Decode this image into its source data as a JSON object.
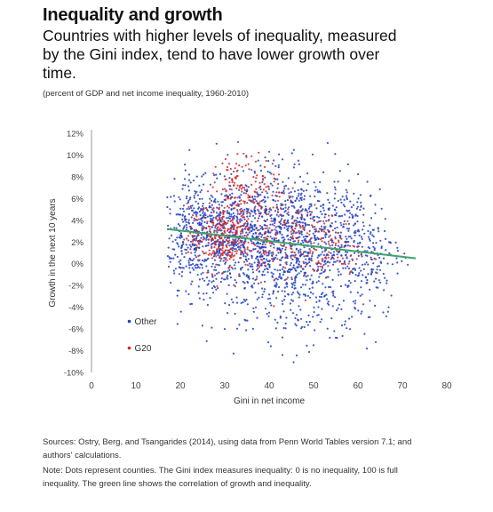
{
  "header": {
    "title": "Inequality and growth",
    "subtitle": "Countries with higher levels of inequality, measured by the Gini index, tend to have lower growth over time.",
    "note": "(percent of GDP and net income inequality, 1960-2010)"
  },
  "footer": {
    "sources": "Sources: Ostry, Berg, and Tsangarides (2014), using data from Penn World Tables version 7.1; and authors' calculations.",
    "note": "Note: Dots represent counties. The Gini index measures inequality: 0 is no inequality, 100 is full inequality. The green line shows the correlation of growth and inequality."
  },
  "colors": {
    "other": "#1f3fbf",
    "g20": "#d62728",
    "trend": "#3aa36b",
    "axis": "#555555"
  },
  "chart_data": {
    "type": "scatter",
    "title": "",
    "xlabel": "Gini in net income",
    "ylabel": "Growth in the next 10 years",
    "xlim": [
      0,
      80
    ],
    "ylim": [
      -10,
      12
    ],
    "x_ticks": [
      "0",
      "10",
      "20",
      "30",
      "40",
      "50",
      "60",
      "70",
      "80"
    ],
    "y_ticks": [
      "-10%",
      "-8%",
      "-6%",
      "-4%",
      "-2%",
      "0%",
      "2%",
      "4%",
      "6%",
      "8%",
      "10%",
      "12%"
    ],
    "legend": {
      "position": "bottom-left",
      "entries": [
        {
          "name": "Other",
          "series": "other"
        },
        {
          "name": "G20",
          "series": "g20"
        }
      ]
    },
    "trend_line": {
      "x": [
        17,
        73
      ],
      "y": [
        3.2,
        0.5
      ]
    },
    "series": [
      {
        "name": "Other",
        "key": "other",
        "clusters": [
          {
            "cx": 24,
            "cy": 2.6,
            "sx": 4.5,
            "sy": 2.4,
            "n": 430
          },
          {
            "cx": 36,
            "cy": 2.2,
            "sx": 7.0,
            "sy": 2.6,
            "n": 620
          },
          {
            "cx": 48,
            "cy": 1.8,
            "sx": 6.0,
            "sy": 3.2,
            "n": 520
          },
          {
            "cx": 60,
            "cy": 1.2,
            "sx": 5.0,
            "sy": 3.0,
            "n": 260
          },
          {
            "cx": 38,
            "cy": 4.5,
            "sx": 7.0,
            "sy": 3.0,
            "n": 180
          },
          {
            "cx": 44,
            "cy": -3.5,
            "sx": 9.0,
            "sy": 2.2,
            "n": 120
          }
        ],
        "outliers": [
          [
            21,
            7.8
          ],
          [
            22,
            8.2
          ],
          [
            40,
            10.3
          ],
          [
            33,
            11.2
          ],
          [
            47,
            8.0
          ],
          [
            43,
            9.6
          ],
          [
            62,
            -7.8
          ],
          [
            64,
            -7.2
          ],
          [
            55,
            -6.8
          ],
          [
            50,
            -7.5
          ],
          [
            30,
            -6.0
          ],
          [
            25,
            -5.7
          ],
          [
            43,
            -8.4
          ],
          [
            67,
            2.0
          ],
          [
            69,
            1.2
          ],
          [
            66,
            3.0
          ],
          [
            18,
            2.6
          ],
          [
            18,
            0.5
          ],
          [
            57,
            -5.6
          ],
          [
            27,
            5.8
          ],
          [
            32,
            7.2
          ],
          [
            51,
            6.6
          ],
          [
            59,
            5.4
          ],
          [
            63,
            4.2
          ]
        ]
      },
      {
        "name": "G20",
        "key": "g20",
        "clusters": [
          {
            "cx": 29,
            "cy": 2.4,
            "sx": 3.6,
            "sy": 1.5,
            "n": 260
          },
          {
            "cx": 35,
            "cy": 7.3,
            "sx": 4.0,
            "sy": 1.3,
            "n": 110
          },
          {
            "cx": 45,
            "cy": 2.1,
            "sx": 5.0,
            "sy": 1.8,
            "n": 110
          },
          {
            "cx": 55,
            "cy": 1.3,
            "sx": 3.5,
            "sy": 1.5,
            "n": 60
          },
          {
            "cx": 38,
            "cy": 3.6,
            "sx": 5.0,
            "sy": 2.4,
            "n": 90
          }
        ],
        "outliers": [
          [
            31,
            9.2
          ],
          [
            37,
            9.4
          ],
          [
            39,
            8.9
          ],
          [
            63,
            0.4
          ],
          [
            64,
            -0.8
          ],
          [
            42,
            5.8
          ],
          [
            26,
            5.0
          ],
          [
            34,
            4.9
          ],
          [
            48,
            -1.0
          ],
          [
            52,
            -0.4
          ]
        ]
      }
    ]
  }
}
